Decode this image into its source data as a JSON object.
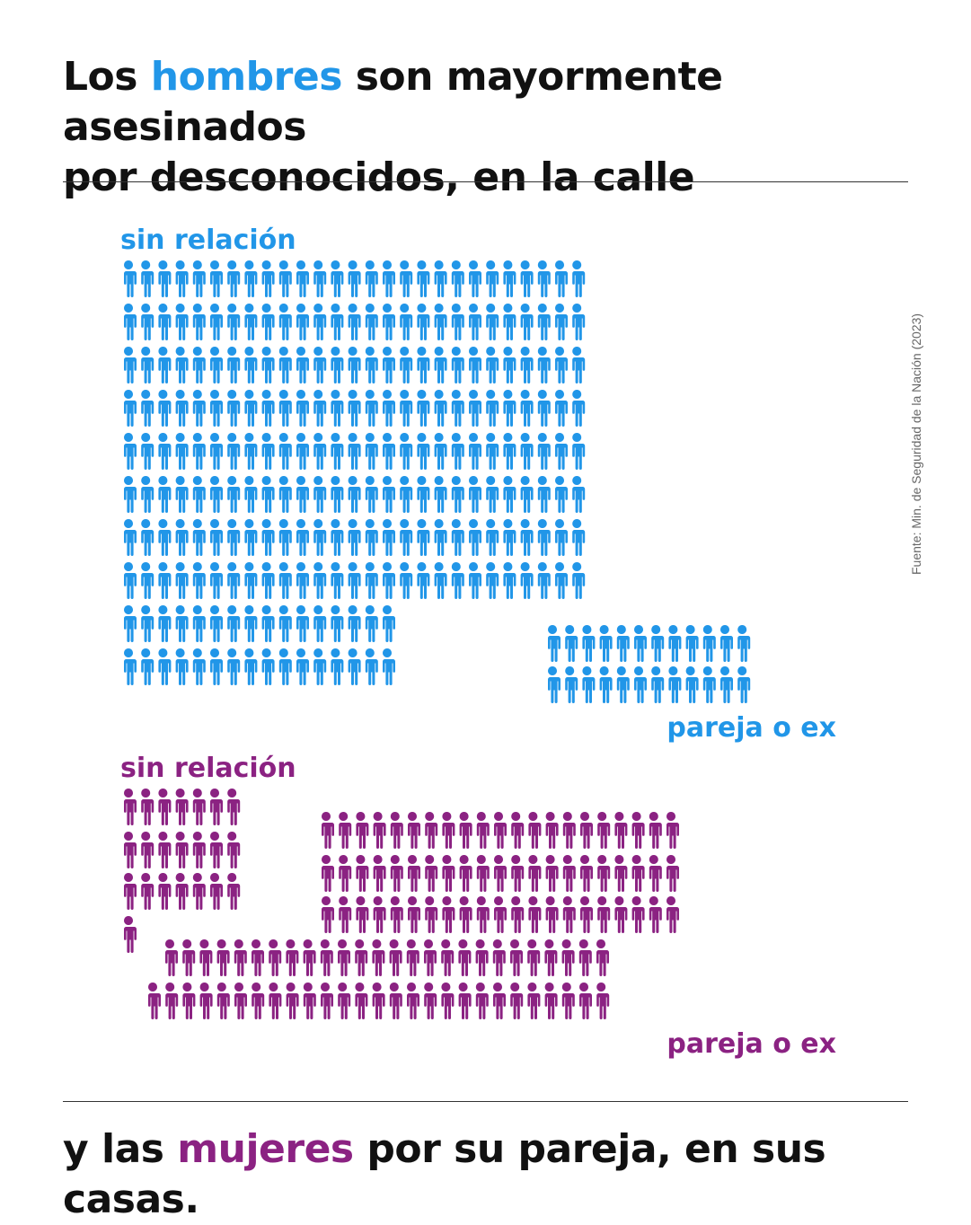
{
  "title": {
    "prefix": "Los ",
    "highlight": "hombres",
    "rest_line1": " son mayormente asesinados",
    "line2": "por desconocidos, en la calle"
  },
  "footer": {
    "prefix": "y las ",
    "highlight": "mujeres",
    "rest": " por su pareja, en sus casas."
  },
  "source": "Fuente: Min. de Seguridad de la Nación (2023)",
  "colors": {
    "hombres": "#2196e8",
    "mujeres": "#8b2282",
    "text": "#111111"
  },
  "chart_data": [
    {
      "type": "pictogram",
      "group": "hombres",
      "icon": "person-icon",
      "series": [
        {
          "name": "sin relación",
          "rows": [
            27,
            27,
            27,
            27,
            27,
            27,
            27,
            27,
            16,
            16
          ]
        },
        {
          "name": "pareja o ex",
          "rows": [
            12,
            12
          ]
        }
      ]
    },
    {
      "type": "pictogram",
      "group": "mujeres",
      "icon": "person-icon",
      "series": [
        {
          "name": "sin relación",
          "rows": [
            7,
            7,
            7,
            1
          ]
        },
        {
          "name": "pareja o ex",
          "rows": [
            21,
            21,
            21,
            26,
            27
          ]
        }
      ]
    }
  ]
}
